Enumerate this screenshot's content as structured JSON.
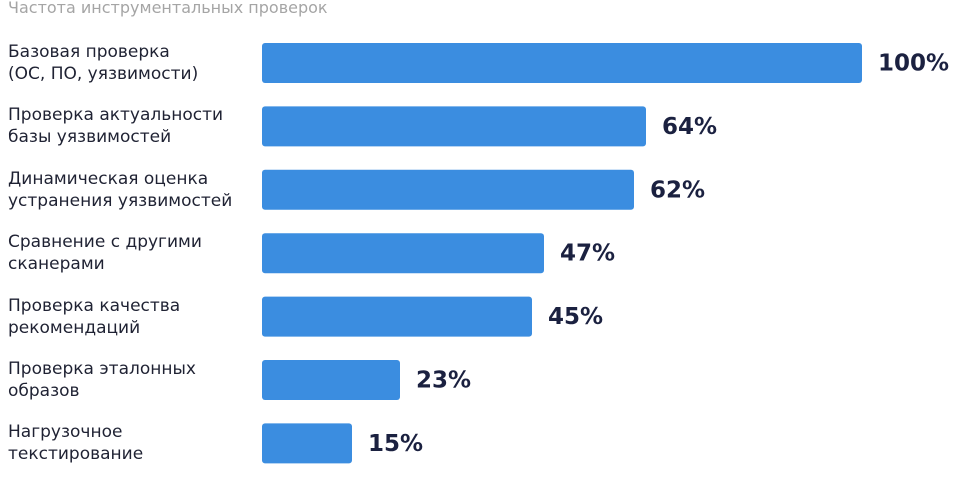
{
  "chart_data": {
    "type": "bar",
    "orientation": "horizontal",
    "title": "Частота инструментальных проверок",
    "categories": [
      "Базовая проверка\n(ОС, ПО, уязвимости)",
      "Проверка актуальности\nбазы уязвимостей",
      "Динамическая оценка\nустранения уязвимостей",
      "Сравнение с другими\nсканерами",
      "Проверка качества\nрекомендаций",
      "Проверка эталонных\nобразов",
      "Нагрузочное\nтекстирование"
    ],
    "values": [
      100,
      64,
      62,
      47,
      45,
      23,
      15
    ],
    "value_labels": [
      "100%",
      "64%",
      "62%",
      "47%",
      "45%",
      "23%",
      "15%"
    ],
    "color": "#3b8de0",
    "xlim": [
      0,
      100
    ]
  }
}
